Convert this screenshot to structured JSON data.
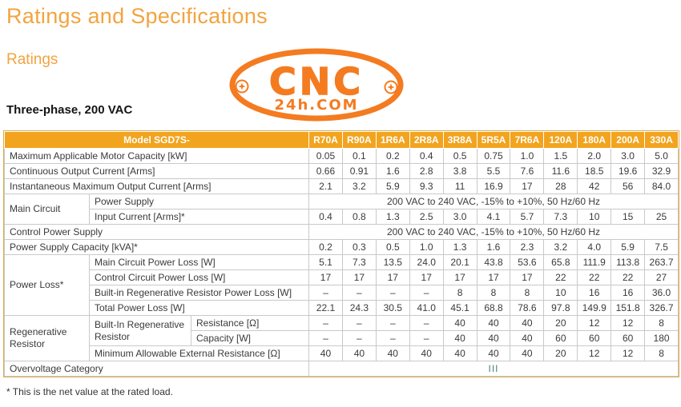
{
  "page": {
    "title": "Ratings and Specifications",
    "subtitle": "Ratings",
    "phase_heading": "Three-phase, 200 VAC",
    "footnote": "* This is the net value at the rated load."
  },
  "logo": {
    "line1": "CNC",
    "line2": "24h.COM",
    "color": "#f47b20"
  },
  "colors": {
    "header_orange": "#f2a41f",
    "title_orange": "#f2a440",
    "logo_orange": "#f47b20",
    "outer_border_gold": "#d9ad4a",
    "grid_gray": "#c9c9c9",
    "text_dark": "#3a3a3a",
    "overvoltage_teal": "#4e7d7d"
  },
  "table": {
    "model_label": "Model SGD7S-",
    "columns": [
      "R70A",
      "R90A",
      "1R6A",
      "2R8A",
      "3R8A",
      "5R5A",
      "7R6A",
      "120A",
      "180A",
      "200A",
      "330A"
    ],
    "motor_capacity": {
      "label": "Maximum Applicable Motor Capacity [kW]",
      "values": [
        "0.05",
        "0.1",
        "0.2",
        "0.4",
        "0.5",
        "0.75",
        "1.0",
        "1.5",
        "2.0",
        "3.0",
        "5.0"
      ]
    },
    "continuous_current": {
      "label": "Continuous Output Current [Arms]",
      "values": [
        "0.66",
        "0.91",
        "1.6",
        "2.8",
        "3.8",
        "5.5",
        "7.6",
        "11.6",
        "18.5",
        "19.6",
        "32.9"
      ]
    },
    "instantaneous_current": {
      "label": "Instantaneous Maximum Output Current [Arms]",
      "values": [
        "2.1",
        "3.2",
        "5.9",
        "9.3",
        "11",
        "16.9",
        "17",
        "28",
        "42",
        "56",
        "84.0"
      ]
    },
    "main_circuit": {
      "label": "Main Circuit",
      "power_supply": {
        "label": "Power Supply",
        "value": "200 VAC to 240 VAC, -15% to +10%, 50 Hz/60 Hz"
      },
      "input_current": {
        "label": "Input Current [Arms]*",
        "values": [
          "0.4",
          "0.8",
          "1.3",
          "2.5",
          "3.0",
          "4.1",
          "5.7",
          "7.3",
          "10",
          "15",
          "25"
        ]
      }
    },
    "control_power_supply": {
      "label": "Control Power Supply",
      "value": "200 VAC to 240 VAC, -15% to +10%, 50 Hz/60 Hz"
    },
    "power_supply_capacity": {
      "label": "Power Supply Capacity [kVA]*",
      "values": [
        "0.2",
        "0.3",
        "0.5",
        "1.0",
        "1.3",
        "1.6",
        "2.3",
        "3.2",
        "4.0",
        "5.9",
        "7.5"
      ]
    },
    "power_loss": {
      "label": "Power Loss*",
      "main_circuit": {
        "label": "Main Circuit Power Loss [W]",
        "values": [
          "5.1",
          "7.3",
          "13.5",
          "24.0",
          "20.1",
          "43.8",
          "53.6",
          "65.8",
          "111.9",
          "113.8",
          "263.7"
        ]
      },
      "control_circuit": {
        "label": "Control Circuit Power Loss [W]",
        "values": [
          "17",
          "17",
          "17",
          "17",
          "17",
          "17",
          "17",
          "22",
          "22",
          "22",
          "27"
        ]
      },
      "built_in_regen": {
        "label": "Built-in Regenerative Resistor Power Loss [W]",
        "values": [
          "–",
          "–",
          "–",
          "–",
          "8",
          "8",
          "8",
          "10",
          "16",
          "16",
          "36.0"
        ]
      },
      "total": {
        "label": "Total Power Loss [W]",
        "values": [
          "22.1",
          "24.3",
          "30.5",
          "41.0",
          "45.1",
          "68.8",
          "78.6",
          "97.8",
          "149.9",
          "151.8",
          "326.7"
        ]
      }
    },
    "regenerative_resistor": {
      "label": "Regenerative Resistor",
      "built_in": {
        "label": "Built-In Regenerative Resistor",
        "resistance": {
          "label": "Resistance [Ω]",
          "values": [
            "–",
            "–",
            "–",
            "–",
            "40",
            "40",
            "40",
            "20",
            "12",
            "12",
            "8"
          ]
        },
        "capacity": {
          "label": "Capacity [W]",
          "values": [
            "–",
            "–",
            "–",
            "–",
            "40",
            "40",
            "40",
            "60",
            "60",
            "60",
            "180"
          ]
        }
      },
      "min_external": {
        "label": "Minimum Allowable External Resistance [Ω]",
        "values": [
          "40",
          "40",
          "40",
          "40",
          "40",
          "40",
          "40",
          "20",
          "12",
          "12",
          "8"
        ]
      }
    },
    "overvoltage": {
      "label": "Overvoltage Category",
      "value": "III"
    }
  }
}
